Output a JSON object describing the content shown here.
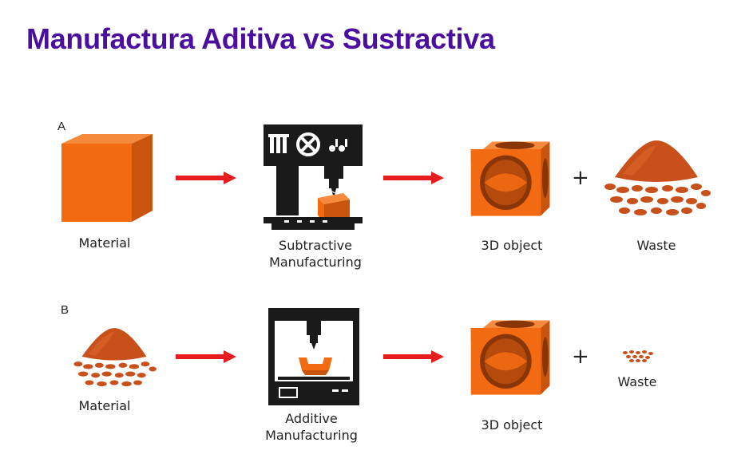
{
  "title": "Manufactura Aditiva vs Sustractiva",
  "colors": {
    "title": "#4b0fa0",
    "material_orange": "#f26a12",
    "waste_brown": "#c8501a",
    "arrow_red": "#e81c1c",
    "machine_black": "#1a1a1a"
  },
  "row_a": {
    "label": "A",
    "material_label": "Material",
    "machine_label_line1": "Subtractive",
    "machine_label_line2": "Manufacturing",
    "object_label": "3D object",
    "plus": "+",
    "waste_label": "Waste"
  },
  "row_b": {
    "label": "B",
    "material_label": "Material",
    "machine_label_line1": "Additive",
    "machine_label_line2": "Manufacturing",
    "object_label": "3D object",
    "plus": "+",
    "waste_label": "Waste"
  }
}
